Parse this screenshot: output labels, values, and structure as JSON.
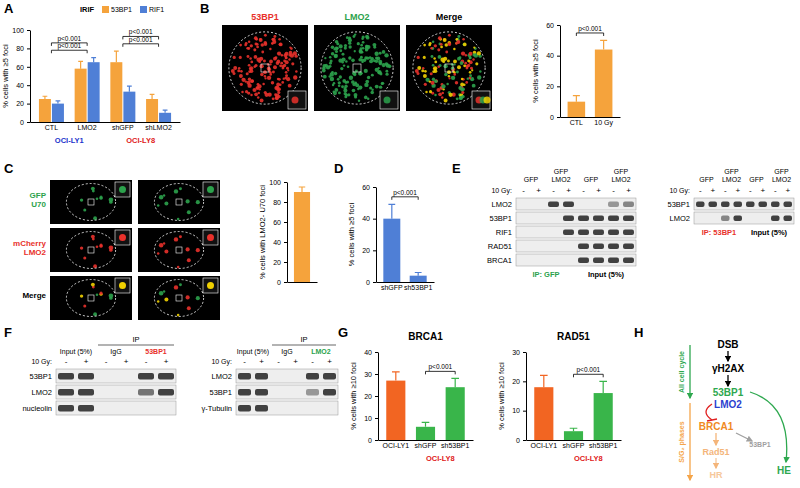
{
  "chart_data": [
    {
      "type": "bar",
      "ylabel": "% cells with ≥5 foci",
      "categories": [
        "CTL",
        "LMO2",
        "shGFP",
        "shLMO2"
      ],
      "category_groups": [
        {
          "name": "OCI-LY1",
          "color": "#2233cc",
          "categories": [
            "CTL",
            "LMO2"
          ]
        },
        {
          "name": "OCI-LY8",
          "color": "#e02020",
          "categories": [
            "shGFP",
            "shLMO2"
          ]
        }
      ],
      "legend_title": "IRIF",
      "legend": "top-right",
      "series": [
        {
          "name": "53BP1",
          "color": "#f5a33c",
          "values": [
            25,
            58,
            65,
            25
          ],
          "errors": [
            3,
            8,
            12,
            5
          ]
        },
        {
          "name": "RIF1",
          "color": "#4f7fd6",
          "values": [
            20,
            65,
            33,
            10
          ],
          "errors": [
            3,
            5,
            6,
            3
          ]
        }
      ],
      "ylim": [
        0,
        100
      ],
      "yticks": [
        0,
        20,
        40,
        60,
        80,
        100
      ],
      "annotations": [
        {
          "text": "p<0.001",
          "categories": [
            "CTL",
            "LMO2"
          ]
        },
        {
          "text": "p<0.001",
          "categories": [
            "CTL",
            "LMO2"
          ]
        },
        {
          "text": "p<0.001",
          "categories": [
            "shGFP",
            "shLMO2"
          ]
        },
        {
          "text": "p<0.001",
          "categories": [
            "shGFP",
            "shLMO2"
          ]
        }
      ]
    },
    {
      "type": "bar",
      "ylabel": "% cells with ≥5 foci",
      "categories": [
        "CTL",
        "10 Gy"
      ],
      "values": [
        10,
        44
      ],
      "errors": [
        4,
        6
      ],
      "color": "#f5a33c",
      "ylim": [
        0,
        60
      ],
      "yticks": [
        0,
        20,
        40,
        60
      ],
      "annotations": [
        {
          "text": "p<0.001",
          "categories": [
            "CTL",
            "10 Gy"
          ]
        }
      ]
    },
    {
      "type": "bar",
      "ylabel": "% cells with LMO2- U70 foci",
      "categories": [
        null
      ],
      "values": [
        90
      ],
      "errors": [
        5
      ],
      "color": "#f5a33c",
      "ylim": [
        0,
        100
      ],
      "yticks": [
        0,
        20,
        40,
        60,
        80,
        100
      ]
    },
    {
      "type": "bar",
      "ylabel": "% cells with ≥5 foci",
      "categories": [
        "shGFP",
        "sh53BP1"
      ],
      "values": [
        40,
        4
      ],
      "errors": [
        9,
        2
      ],
      "color": "#4f7fd6",
      "ylim": [
        0,
        60
      ],
      "yticks": [
        0,
        20,
        40,
        60
      ],
      "annotations": [
        {
          "text": "p<0.001",
          "categories": [
            "shGFP",
            "sh53BP1"
          ]
        }
      ]
    },
    {
      "type": "bar",
      "title": "BRCA1",
      "ylabel": "% cells with ≥10 foci",
      "categories": [
        "OCI-LY1",
        "shGFP",
        "sh53BP1"
      ],
      "category_groups": [
        {
          "name": "OCI-LY8",
          "color": "#e02020",
          "categories": [
            "shGFP",
            "sh53BP1"
          ]
        }
      ],
      "values": [
        27,
        6,
        24
      ],
      "errors": [
        4,
        2,
        4
      ],
      "colors": [
        "#f26522",
        "#39b54a",
        "#39b54a"
      ],
      "ylim": [
        0,
        40
      ],
      "yticks": [
        0,
        10,
        20,
        30,
        40
      ],
      "annotations": [
        {
          "text": "p<0.001",
          "categories": [
            "shGFP",
            "sh53BP1"
          ]
        }
      ]
    },
    {
      "type": "bar",
      "title": "RAD51",
      "ylabel": "% cells with ≥10 foci",
      "categories": [
        "OCI-LY1",
        "shGFP",
        "sh53BP1"
      ],
      "category_groups": [
        {
          "name": "OCI-LY8",
          "color": "#e02020",
          "categories": [
            "shGFP",
            "sh53BP1"
          ]
        }
      ],
      "values": [
        18,
        3,
        16
      ],
      "errors": [
        4,
        1,
        4
      ],
      "colors": [
        "#f26522",
        "#39b54a",
        "#39b54a"
      ],
      "ylim": [
        0,
        30
      ],
      "yticks": [
        0,
        10,
        20,
        30
      ],
      "annotations": [
        {
          "text": "p<0.001",
          "categories": [
            "shGFP",
            "sh53BP1"
          ]
        }
      ]
    }
  ],
  "figure": {
    "panel_labels": [
      "A",
      "B",
      "C",
      "D",
      "E",
      "F",
      "G",
      "H"
    ],
    "b_images": [
      {
        "label": "53BP1",
        "color": "#e8312b"
      },
      {
        "label": "LMO2",
        "color": "#2ca24c"
      },
      {
        "label": "Merge",
        "color": "#000000"
      }
    ],
    "c_rows": [
      {
        "lines": [
          "GFP",
          "U70"
        ],
        "color": "#2ca24c"
      },
      {
        "lines": [
          "mCherry",
          "LMO2"
        ],
        "color": "#e8312b"
      },
      {
        "lines": [
          "Merge"
        ],
        "color": "#000000"
      }
    ],
    "blots": [
      {
        "irradiation": "10 Gy:",
        "columns": [
          {
            "header": "GFP",
            "signs": [
              "-",
              "+"
            ]
          },
          {
            "header": [
              "GFP",
              "LMO2"
            ],
            "signs": [
              "-",
              "+"
            ]
          },
          {
            "header": "GFP",
            "signs": [
              "-",
              "+"
            ]
          },
          {
            "header": [
              "GFP",
              "LMO2"
            ],
            "signs": [
              "-",
              "+"
            ]
          }
        ],
        "rows": [
          "LMO2",
          "53BP1",
          "RIF1",
          "RAD51",
          "BRCA1"
        ],
        "bottom": [
          {
            "text": "IP: GFP",
            "color": "#2ca24c"
          },
          {
            "text": "Input (5%)",
            "color": "#000000"
          }
        ]
      },
      {
        "irradiation": "10 Gy:",
        "columns": [
          {
            "header": "GFP",
            "signs": [
              "-",
              "+"
            ]
          },
          {
            "header": [
              "GFP",
              "LMO2"
            ],
            "signs": [
              "-",
              "+"
            ]
          },
          {
            "header": "GFP",
            "signs": [
              "-",
              "+"
            ]
          },
          {
            "header": [
              "GFP",
              "LMO2"
            ],
            "signs": [
              "-",
              "+"
            ]
          }
        ],
        "rows": [
          "53BP1",
          "LMO2"
        ],
        "bottom": [
          {
            "text": "IP: 53BP1",
            "color": "#e8312b"
          },
          {
            "text": "Input (5%)",
            "color": "#000000"
          }
        ]
      },
      {
        "irradiation": "10 Gy:",
        "span_header": "IP",
        "columns": [
          {
            "header": "Input (5%)",
            "signs": [
              "-",
              "+"
            ]
          },
          {
            "header": "IgG",
            "signs": [
              "-",
              "+"
            ]
          },
          {
            "header": "53BP1",
            "color": "#e8312b",
            "signs": [
              "-",
              "+"
            ]
          }
        ],
        "rows": [
          "53BP1",
          "LMO2",
          "nucleolin"
        ]
      },
      {
        "irradiation": "10 Gy:",
        "span_header": "IP",
        "columns": [
          {
            "header": "Input (5%)",
            "signs": [
              "-",
              "+"
            ]
          },
          {
            "header": "IgG",
            "signs": [
              "-",
              "+"
            ]
          },
          {
            "header": "LMO2",
            "color": "#2ca24c",
            "signs": [
              "-",
              "+"
            ]
          }
        ],
        "rows": [
          "LMO2",
          "53BP1",
          "γ-Tubulin"
        ]
      }
    ],
    "diagram": {
      "nodes": [
        {
          "text": "DSB",
          "color": "#000000"
        },
        {
          "text": "γH2AX",
          "color": "#000000"
        },
        {
          "text": "53BP1",
          "color": "#2ea84f"
        },
        {
          "text": "LMO2",
          "color": "#2b3fcf"
        },
        {
          "text": "BRCA1",
          "color": "#f08a24"
        },
        {
          "text": "53BP1",
          "color": "#a0a0a0"
        },
        {
          "text": "Rad51",
          "color": "#f4b57a"
        },
        {
          "text": "HR",
          "color": "#f6c79b"
        },
        {
          "text": "HE",
          "color": "#2ea84f"
        }
      ],
      "phases": [
        {
          "text": "All cell cycle",
          "color": "#2ea84f"
        },
        {
          "text": "S/G₂ phases",
          "color": "#f5a54a"
        }
      ]
    }
  }
}
